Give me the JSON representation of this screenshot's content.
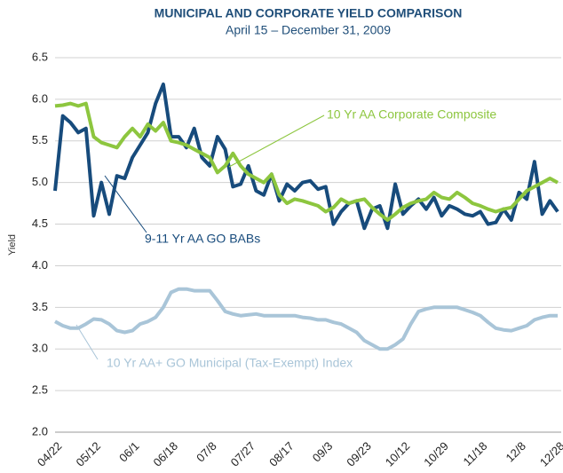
{
  "chart_data": {
    "type": "line",
    "title": "MUNICIPAL AND CORPORATE YIELD COMPARISON",
    "subtitle": "April 15 – December 31, 2009",
    "y_label": "Yield",
    "categories": [
      "04/22",
      null,
      null,
      null,
      null,
      "05/12",
      null,
      null,
      null,
      null,
      "06/1",
      null,
      null,
      null,
      null,
      "06/18",
      null,
      null,
      null,
      null,
      "07/8",
      null,
      null,
      null,
      null,
      "07/27",
      null,
      null,
      null,
      null,
      "08/17",
      null,
      null,
      null,
      null,
      "09/3",
      null,
      null,
      null,
      null,
      "09/23",
      null,
      null,
      null,
      null,
      "10/12",
      null,
      null,
      null,
      null,
      "10/29",
      null,
      null,
      null,
      null,
      "11/18",
      null,
      null,
      null,
      null,
      "12/8",
      null,
      null,
      null,
      null,
      "12/28"
    ],
    "ylim": [
      2.0,
      6.5
    ],
    "yticks": [
      {
        "value": 2.0,
        "label": "2.0"
      },
      {
        "value": 2.5,
        "label": "2.5"
      },
      {
        "value": 3.0,
        "label": "3.0"
      },
      {
        "value": 3.5,
        "label": "3.5"
      },
      {
        "value": 4.0,
        "label": "4.0"
      },
      {
        "value": 4.5,
        "label": "4.5"
      },
      {
        "value": 5.0,
        "label": "5.0"
      },
      {
        "value": 5.5,
        "label": "5.5"
      },
      {
        "value": 6.0,
        "label": "6.0"
      },
      {
        "value": 6.5,
        "label": "6.5"
      }
    ],
    "grid": true,
    "series": [
      {
        "name": "10 Yr AA+ GO Municipal (Tax-Exempt) Index",
        "color": "#a9c5d8",
        "values": [
          3.33,
          3.28,
          3.25,
          3.25,
          3.3,
          3.36,
          3.35,
          3.3,
          3.22,
          3.2,
          3.22,
          3.3,
          3.33,
          3.38,
          3.5,
          3.68,
          3.72,
          3.72,
          3.7,
          3.7,
          3.7,
          3.58,
          3.45,
          3.42,
          3.4,
          3.41,
          3.42,
          3.4,
          3.4,
          3.4,
          3.4,
          3.4,
          3.38,
          3.37,
          3.35,
          3.35,
          3.32,
          3.3,
          3.25,
          3.2,
          3.1,
          3.05,
          3.0,
          3.0,
          3.05,
          3.12,
          3.3,
          3.45,
          3.48,
          3.5,
          3.5,
          3.5,
          3.5,
          3.47,
          3.44,
          3.4,
          3.32,
          3.25,
          3.23,
          3.22,
          3.25,
          3.28,
          3.35,
          3.38,
          3.4,
          3.4
        ]
      },
      {
        "name": "9-11 Yr AA GO BABs",
        "color": "#174b7c",
        "values": [
          4.9,
          5.8,
          5.72,
          5.6,
          5.65,
          4.6,
          5.0,
          4.62,
          5.08,
          5.05,
          5.3,
          5.45,
          5.6,
          5.95,
          6.18,
          5.55,
          5.55,
          5.42,
          5.65,
          5.3,
          5.2,
          5.55,
          5.4,
          4.95,
          4.98,
          5.2,
          4.9,
          4.85,
          5.1,
          4.78,
          4.98,
          4.9,
          5.0,
          5.02,
          4.92,
          4.95,
          4.5,
          4.65,
          4.75,
          4.78,
          4.45,
          4.68,
          4.72,
          4.45,
          4.98,
          4.62,
          4.72,
          4.8,
          4.68,
          4.82,
          4.6,
          4.72,
          4.68,
          4.62,
          4.6,
          4.65,
          4.5,
          4.52,
          4.68,
          4.55,
          4.88,
          4.8,
          5.25,
          4.62,
          4.78,
          4.65
        ]
      },
      {
        "name": "10 Yr AA Corporate Composite",
        "color": "#8dc63f",
        "values": [
          5.92,
          5.93,
          5.95,
          5.92,
          5.95,
          5.55,
          5.48,
          5.45,
          5.42,
          5.55,
          5.65,
          5.55,
          5.7,
          5.62,
          5.72,
          5.5,
          5.48,
          5.45,
          5.4,
          5.35,
          5.3,
          5.12,
          5.2,
          5.35,
          5.2,
          5.1,
          5.05,
          5.0,
          5.1,
          4.85,
          4.75,
          4.8,
          4.78,
          4.75,
          4.72,
          4.65,
          4.7,
          4.8,
          4.75,
          4.78,
          4.8,
          4.7,
          4.62,
          4.55,
          4.62,
          4.7,
          4.75,
          4.78,
          4.8,
          4.88,
          4.82,
          4.8,
          4.88,
          4.82,
          4.75,
          4.72,
          4.68,
          4.65,
          4.68,
          4.7,
          4.8,
          4.9,
          4.95,
          5.0,
          5.05,
          5.0
        ]
      }
    ]
  }
}
